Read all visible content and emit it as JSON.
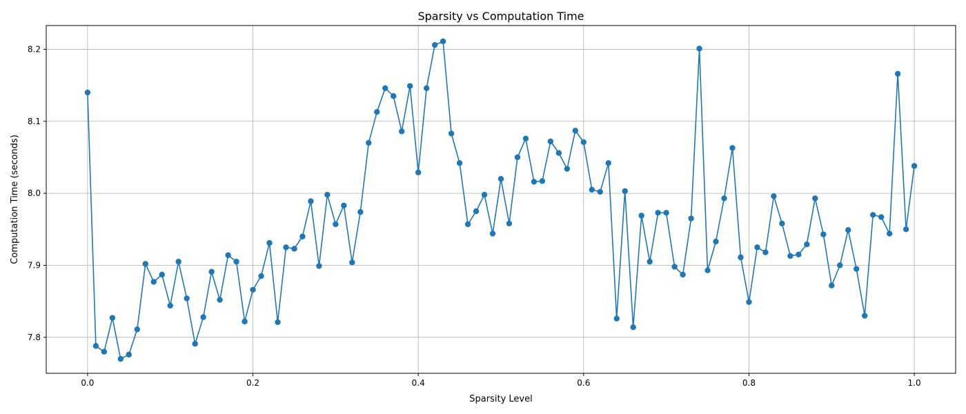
{
  "chart_data": {
    "type": "line",
    "title": "Sparsity vs Computation Time",
    "xlabel": "Sparsity Level",
    "ylabel": "Computation Time (seconds)",
    "xlim": [
      -0.05,
      1.05
    ],
    "ylim": [
      7.75,
      8.233
    ],
    "xticks": [
      0.0,
      0.2,
      0.4,
      0.6,
      0.8,
      1.0
    ],
    "xtick_labels": [
      "0.0",
      "0.2",
      "0.4",
      "0.6",
      "0.8",
      "1.0"
    ],
    "yticks": [
      7.8,
      7.9,
      8.0,
      8.1,
      8.2
    ],
    "ytick_labels": [
      "7.8",
      "7.9",
      "8.0",
      "8.1",
      "8.2"
    ],
    "grid": true,
    "color": "#1f77b4",
    "marker": "circle",
    "x": [
      0.0,
      0.01,
      0.02,
      0.03,
      0.04,
      0.05,
      0.06,
      0.07,
      0.08,
      0.09,
      0.1,
      0.11,
      0.12,
      0.13,
      0.14,
      0.15,
      0.16,
      0.17,
      0.18,
      0.19,
      0.2,
      0.21,
      0.22,
      0.23,
      0.24,
      0.25,
      0.26,
      0.27,
      0.28,
      0.29,
      0.3,
      0.31,
      0.32,
      0.33,
      0.34,
      0.35,
      0.36,
      0.37,
      0.38,
      0.39,
      0.4,
      0.41,
      0.42,
      0.43,
      0.44,
      0.45,
      0.46,
      0.47,
      0.48,
      0.49,
      0.5,
      0.51,
      0.52,
      0.53,
      0.54,
      0.55,
      0.56,
      0.57,
      0.58,
      0.59,
      0.6,
      0.61,
      0.62,
      0.63,
      0.64,
      0.65,
      0.66,
      0.67,
      0.68,
      0.69,
      0.7,
      0.71,
      0.72,
      0.73,
      0.74,
      0.75,
      0.76,
      0.77,
      0.78,
      0.79,
      0.8,
      0.81,
      0.82,
      0.83,
      0.84,
      0.85,
      0.86,
      0.87,
      0.88,
      0.89,
      0.9,
      0.91,
      0.92,
      0.93,
      0.94,
      0.95,
      0.96,
      0.97,
      0.98,
      0.99,
      1.0
    ],
    "y": [
      8.14,
      7.788,
      7.78,
      7.827,
      7.77,
      7.776,
      7.811,
      7.902,
      7.877,
      7.887,
      7.844,
      7.905,
      7.854,
      7.791,
      7.828,
      7.891,
      7.852,
      7.914,
      7.905,
      7.822,
      7.866,
      7.885,
      7.931,
      7.821,
      7.925,
      7.923,
      7.94,
      7.989,
      7.899,
      7.998,
      7.957,
      7.983,
      7.904,
      7.974,
      8.07,
      8.113,
      8.146,
      8.135,
      8.086,
      8.149,
      8.029,
      8.146,
      8.206,
      8.211,
      8.083,
      8.042,
      7.957,
      7.975,
      7.998,
      7.944,
      8.02,
      7.958,
      8.05,
      8.076,
      8.016,
      8.017,
      8.072,
      8.056,
      8.034,
      8.087,
      8.071,
      8.005,
      8.002,
      8.042,
      7.826,
      8.003,
      7.814,
      7.969,
      7.905,
      7.973,
      7.973,
      7.898,
      7.887,
      7.965,
      8.201,
      7.893,
      7.933,
      7.993,
      8.063,
      7.911,
      7.849,
      7.925,
      7.918,
      7.996,
      7.958,
      7.913,
      7.915,
      7.929,
      7.993,
      7.943,
      7.872,
      7.9,
      7.949,
      7.895,
      7.83,
      7.97,
      7.967,
      7.944,
      8.166,
      7.95,
      8.038
    ]
  }
}
